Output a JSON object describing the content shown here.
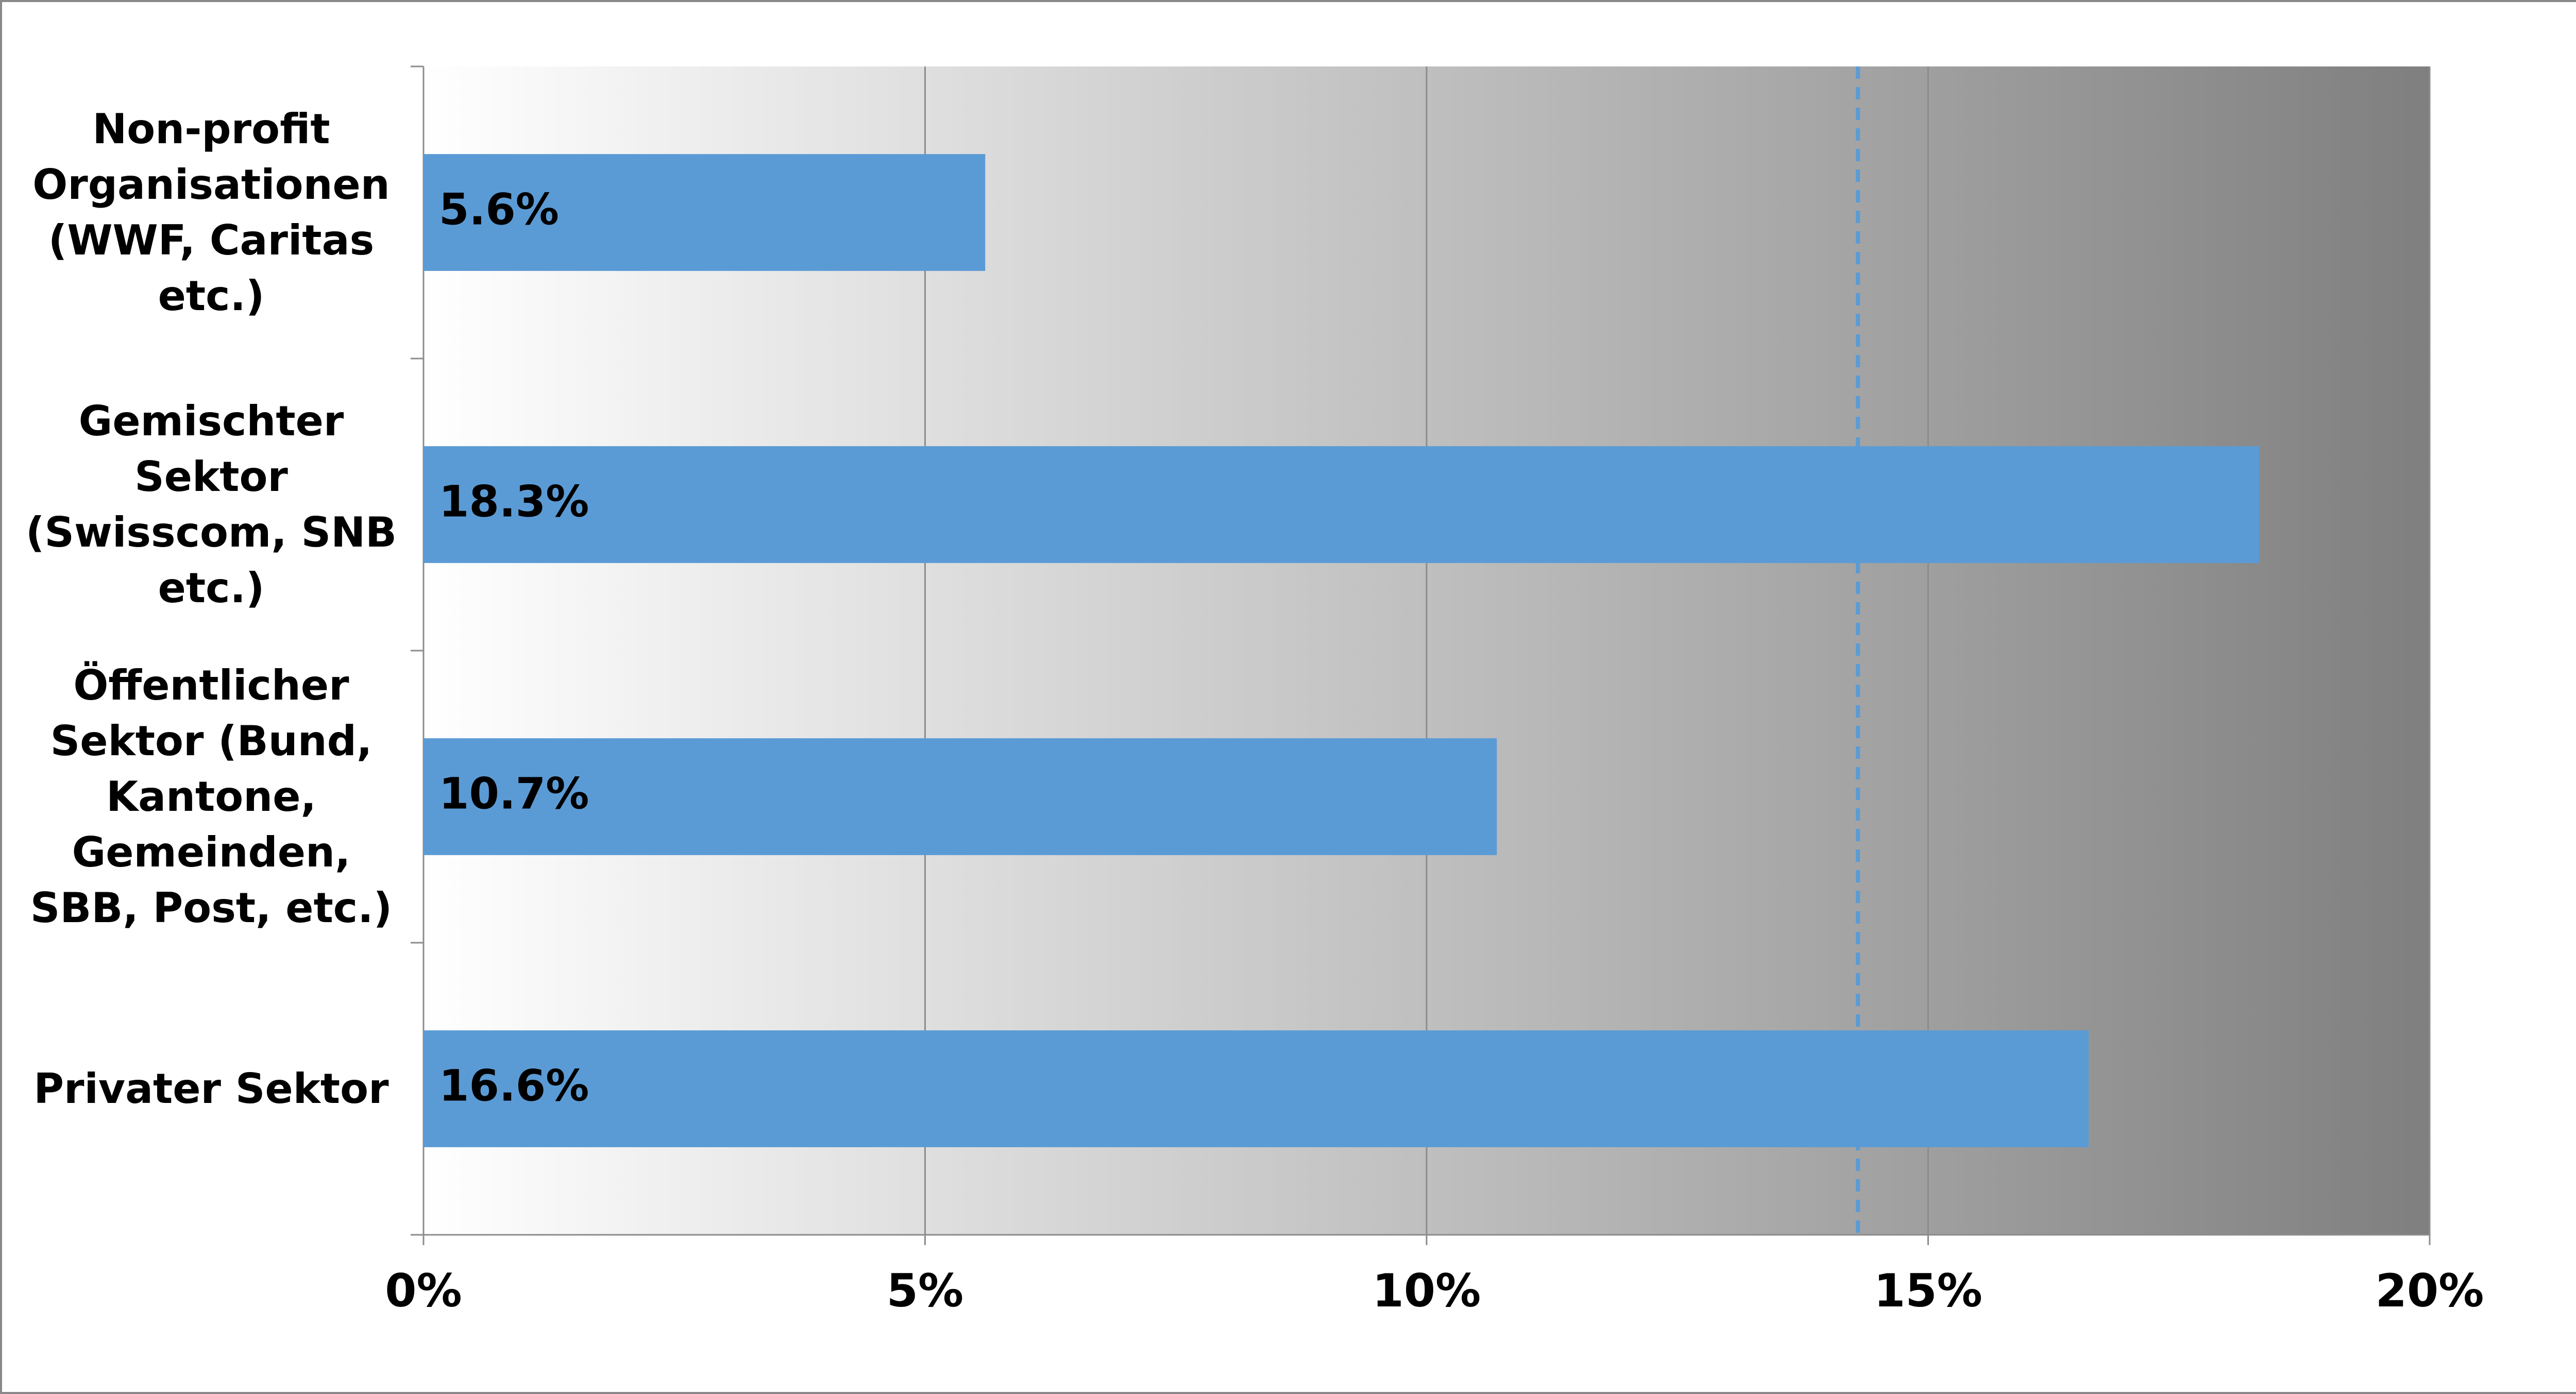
{
  "chart_data": {
    "type": "bar",
    "orientation": "horizontal",
    "categories": [
      "Non-profit\nOrganisationen\n(WWF, Caritas\netc.)",
      "Gemischter\nSektor\n(Swisscom, SNB\netc.)",
      "Öffentlicher\nSektor (Bund,\nKantone,\nGemeinden,\nSBB, Post, etc.)",
      "Privater Sektor"
    ],
    "values": [
      5.6,
      18.3,
      10.7,
      16.6
    ],
    "value_labels": [
      "5.6%",
      "18.3%",
      "10.7%",
      "16.6%"
    ],
    "color": "#5b9bd5",
    "xlim": [
      0,
      20
    ],
    "xticks": [
      {
        "value": 0,
        "label": "0%"
      },
      {
        "value": 5,
        "label": "5%"
      },
      {
        "value": 10,
        "label": "10%"
      },
      {
        "value": 15,
        "label": "15%"
      },
      {
        "value": 20,
        "label": "20%"
      }
    ],
    "grid": true,
    "reference_line": {
      "value": 14.3,
      "color": "#5b9bd5"
    }
  }
}
